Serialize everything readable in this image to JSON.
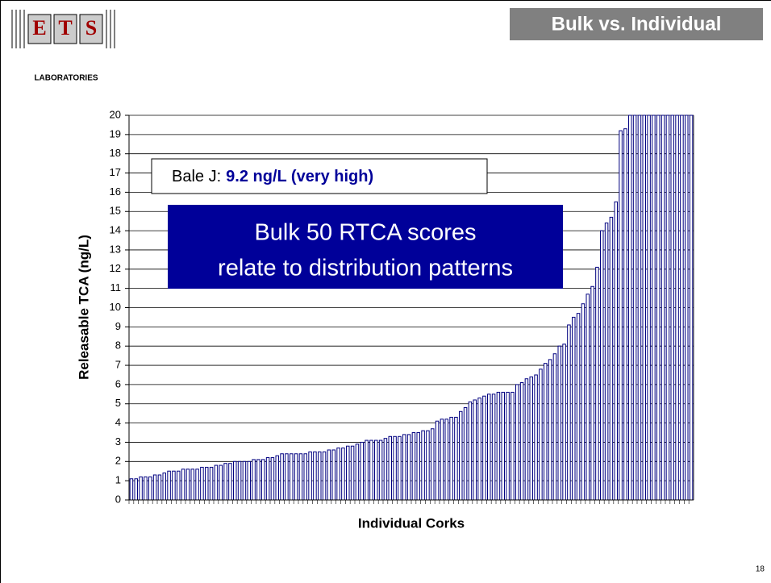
{
  "logo": {
    "letters": [
      "E",
      "T",
      "S"
    ],
    "subtitle": "LABORATORIES"
  },
  "header": {
    "title": "Bulk vs. Individual"
  },
  "chart_data": {
    "type": "bar",
    "y_label": "Releasable TCA (ng/L)",
    "x_label": "Individual Corks",
    "bale_label": "Bale J:",
    "bale_value": "9.2 ng/L (very high)",
    "callout": [
      "Bulk 50 RTCA scores",
      "relate to distribution patterns"
    ],
    "categories": [
      null,
      null,
      null,
      null,
      null,
      null,
      null,
      null,
      null,
      null,
      null,
      null,
      null,
      null,
      null,
      null,
      null,
      null,
      null,
      null,
      null,
      null,
      null,
      null,
      null,
      null,
      null,
      null,
      null,
      null,
      null,
      null,
      null,
      null,
      null,
      null,
      null,
      null,
      null,
      null,
      null,
      null,
      null,
      null,
      null,
      null,
      null,
      null,
      null,
      null,
      null,
      null,
      null,
      null,
      null,
      null,
      null,
      null,
      null,
      null,
      null,
      null,
      null,
      null,
      null,
      null,
      null,
      null,
      null,
      null,
      null,
      null,
      null,
      null,
      null,
      null,
      null,
      null,
      null,
      null,
      null,
      null,
      null,
      null,
      null,
      null,
      null,
      null,
      null,
      null,
      null,
      null,
      null,
      null,
      null,
      null,
      null,
      null,
      null,
      null,
      null,
      null,
      null,
      null,
      null,
      null,
      null,
      null,
      null,
      null,
      null,
      null,
      null,
      null,
      null,
      null,
      null,
      null,
      null,
      null
    ],
    "values": [
      1.1,
      1.1,
      1.2,
      1.2,
      1.2,
      1.3,
      1.3,
      1.4,
      1.5,
      1.5,
      1.5,
      1.6,
      1.6,
      1.6,
      1.6,
      1.7,
      1.7,
      1.7,
      1.8,
      1.8,
      1.9,
      1.9,
      2.0,
      2.0,
      2.0,
      2.0,
      2.1,
      2.1,
      2.1,
      2.2,
      2.2,
      2.3,
      2.4,
      2.4,
      2.4,
      2.4,
      2.4,
      2.4,
      2.5,
      2.5,
      2.5,
      2.5,
      2.6,
      2.6,
      2.7,
      2.7,
      2.8,
      2.8,
      2.9,
      3.0,
      3.1,
      3.1,
      3.1,
      3.1,
      3.2,
      3.3,
      3.3,
      3.3,
      3.4,
      3.4,
      3.5,
      3.5,
      3.6,
      3.6,
      3.7,
      4.1,
      4.2,
      4.2,
      4.3,
      4.3,
      4.6,
      4.8,
      5.1,
      5.2,
      5.3,
      5.4,
      5.5,
      5.5,
      5.6,
      5.6,
      5.6,
      5.6,
      6.0,
      6.1,
      6.3,
      6.4,
      6.5,
      6.8,
      7.1,
      7.3,
      7.6,
      8.0,
      8.1,
      9.1,
      9.5,
      9.7,
      10.2,
      10.7,
      11.1,
      12.1,
      14.0,
      14.4,
      14.7,
      15.5,
      19.2,
      19.3,
      20,
      20,
      20,
      20,
      20,
      20,
      20,
      20,
      20,
      20,
      20,
      20,
      20,
      20
    ],
    "color": "#000080",
    "ylim": [
      0,
      20
    ],
    "yticks": [
      0,
      1,
      2,
      3,
      4,
      5,
      6,
      7,
      8,
      9,
      10,
      11,
      12,
      13,
      14,
      15,
      16,
      17,
      18,
      19,
      20
    ],
    "grid": true
  },
  "page_number": "18"
}
